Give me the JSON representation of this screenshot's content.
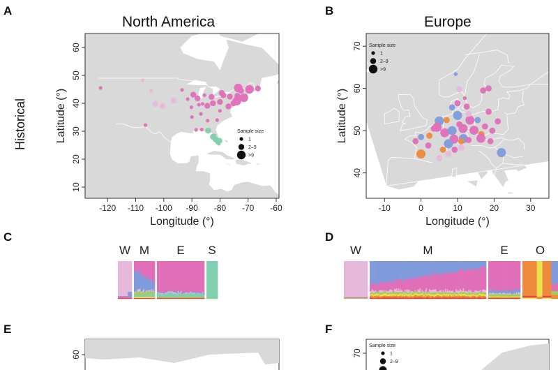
{
  "panels": {
    "A": "A",
    "B": "B",
    "C": "C",
    "D": "D",
    "E": "E",
    "F": "F"
  },
  "row_label": "Historical",
  "colors": {
    "land": "#d9d9d9",
    "water": "#ffffff",
    "cluster_pink": "#e06fb8",
    "cluster_lightpink": "#e6b8dc",
    "cluster_blue": "#7f9bdc",
    "cluster_teal": "#7fcfb0",
    "cluster_orange": "#ef8a3c",
    "cluster_yellow": "#e9e24a",
    "cluster_green": "#9fcf5a",
    "cluster_red": "#e4473a",
    "cluster_purple": "#9c6ab5"
  },
  "chart_data": [
    {
      "id": "A",
      "type": "scatter",
      "title": "North America",
      "xlabel": "Longitude (°)",
      "ylabel": "Latitude (°)",
      "xlim": [
        -128,
        -59
      ],
      "ylim": [
        6,
        65
      ],
      "xticks": [
        -120,
        -110,
        -100,
        -90,
        -80,
        -70,
        -60
      ],
      "yticks": [
        10,
        20,
        30,
        40,
        50,
        60
      ],
      "legend": {
        "title": "Sample size",
        "entries": [
          "1",
          "2–9",
          ">9"
        ],
        "placement": "bottom-right"
      },
      "points": [
        {
          "x": -122.5,
          "y": 45.5,
          "s": 1,
          "c": "pink"
        },
        {
          "x": -107.5,
          "y": 48.3,
          "s": 1,
          "c": "lightpink"
        },
        {
          "x": -104.5,
          "y": 44.5,
          "s": 1,
          "c": "lightpink"
        },
        {
          "x": -103.0,
          "y": 39.8,
          "s": 2,
          "c": "lightpink"
        },
        {
          "x": -100.5,
          "y": 39.0,
          "s": 2,
          "c": "lightpink"
        },
        {
          "x": -106.5,
          "y": 32.2,
          "s": 1,
          "c": "pink"
        },
        {
          "x": -96.5,
          "y": 41.0,
          "s": 2,
          "c": "lightpink"
        },
        {
          "x": -93.5,
          "y": 44.8,
          "s": 1,
          "c": "pink"
        },
        {
          "x": -89.5,
          "y": 43.1,
          "s": 2,
          "c": "pink"
        },
        {
          "x": -91.5,
          "y": 41.5,
          "s": 1,
          "c": "pink"
        },
        {
          "x": -88.0,
          "y": 41.8,
          "s": 2,
          "c": "pink"
        },
        {
          "x": -87.5,
          "y": 39.5,
          "s": 1,
          "c": "pink"
        },
        {
          "x": -86.2,
          "y": 39.8,
          "s": 1,
          "c": "pink"
        },
        {
          "x": -84.5,
          "y": 39.1,
          "s": 2,
          "c": "pink"
        },
        {
          "x": -83.0,
          "y": 42.3,
          "s": 2,
          "c": "pink"
        },
        {
          "x": -85.5,
          "y": 42.9,
          "s": 1,
          "c": "pink"
        },
        {
          "x": -90.2,
          "y": 38.6,
          "s": 1,
          "c": "pink"
        },
        {
          "x": -90.0,
          "y": 35.1,
          "s": 1,
          "c": "pink"
        },
        {
          "x": -86.8,
          "y": 36.2,
          "s": 1,
          "c": "pink"
        },
        {
          "x": -84.4,
          "y": 33.8,
          "s": 1,
          "c": "pink"
        },
        {
          "x": -81.0,
          "y": 34.0,
          "s": 1,
          "c": "pink"
        },
        {
          "x": -88.5,
          "y": 30.5,
          "s": 1,
          "c": "pink"
        },
        {
          "x": -86.5,
          "y": 30.6,
          "s": 1,
          "c": "pink"
        },
        {
          "x": -82.5,
          "y": 40.0,
          "s": 2,
          "c": "pink"
        },
        {
          "x": -80.0,
          "y": 40.5,
          "s": 2,
          "c": "pink"
        },
        {
          "x": -78.8,
          "y": 42.9,
          "s": 2,
          "c": "pink"
        },
        {
          "x": -76.5,
          "y": 42.4,
          "s": 2,
          "c": "pink"
        },
        {
          "x": -75.2,
          "y": 40.0,
          "s": 2,
          "c": "pink"
        },
        {
          "x": -74.0,
          "y": 40.8,
          "s": 3,
          "c": "pink"
        },
        {
          "x": -77.0,
          "y": 38.9,
          "s": 2,
          "c": "pink"
        },
        {
          "x": -73.8,
          "y": 42.7,
          "s": 2,
          "c": "pink"
        },
        {
          "x": -71.5,
          "y": 42.0,
          "s": 3,
          "c": "pink"
        },
        {
          "x": -72.5,
          "y": 44.5,
          "s": 2,
          "c": "pink"
        },
        {
          "x": -69.5,
          "y": 45.0,
          "s": 3,
          "c": "pink"
        },
        {
          "x": -66.5,
          "y": 45.3,
          "s": 2,
          "c": "pink"
        },
        {
          "x": -73.5,
          "y": 45.5,
          "s": 3,
          "c": "pink"
        },
        {
          "x": -79.4,
          "y": 43.7,
          "s": 2,
          "c": "pink"
        },
        {
          "x": -80.0,
          "y": 37.3,
          "s": 1,
          "c": "pink"
        },
        {
          "x": -84.2,
          "y": 30.2,
          "s": 2,
          "c": "teal"
        },
        {
          "x": -82.5,
          "y": 28.0,
          "s": 2,
          "c": "teal"
        },
        {
          "x": -81.5,
          "y": 27.0,
          "s": 2,
          "c": "teal"
        },
        {
          "x": -81.0,
          "y": 26.0,
          "s": 1,
          "c": "teal"
        },
        {
          "x": -80.4,
          "y": 25.5,
          "s": 1,
          "c": "teal"
        },
        {
          "x": -80.2,
          "y": 26.6,
          "s": 2,
          "c": "teal"
        },
        {
          "x": -82.0,
          "y": 28.5,
          "s": 1,
          "c": "teal"
        }
      ]
    },
    {
      "id": "B",
      "type": "scatter",
      "title": "Europe",
      "xlabel": "Longitude (°)",
      "ylabel": "Latitude (°)",
      "xlim": [
        -15,
        35
      ],
      "ylim": [
        34,
        73
      ],
      "xticks": [
        -10,
        0,
        10,
        20,
        30
      ],
      "yticks": [
        40,
        50,
        60,
        70
      ],
      "legend": {
        "title": "Sample size",
        "entries": [
          "1",
          "2–9",
          ">9"
        ],
        "placement": "top-left"
      },
      "points": [
        {
          "x": 9.5,
          "y": 63.4,
          "s": 1,
          "c": "blue"
        },
        {
          "x": 17.0,
          "y": 59.5,
          "s": 2,
          "c": "pink"
        },
        {
          "x": 18.5,
          "y": 60.0,
          "s": 2,
          "c": "pink"
        },
        {
          "x": 12.0,
          "y": 57.7,
          "s": 1,
          "c": "pink"
        },
        {
          "x": 10.5,
          "y": 59.8,
          "s": 2,
          "c": "lightpink"
        },
        {
          "x": 10.0,
          "y": 56.5,
          "s": 2,
          "c": "pink"
        },
        {
          "x": 8.5,
          "y": 55.5,
          "s": 2,
          "c": "blue"
        },
        {
          "x": 12.5,
          "y": 55.7,
          "s": 2,
          "c": "pink"
        },
        {
          "x": 18.5,
          "y": 54.5,
          "s": 2,
          "c": "pink"
        },
        {
          "x": 10.0,
          "y": 53.6,
          "s": 3,
          "c": "blue"
        },
        {
          "x": 13.4,
          "y": 52.5,
          "s": 3,
          "c": "pink"
        },
        {
          "x": 7.0,
          "y": 52.5,
          "s": 2,
          "c": "orange"
        },
        {
          "x": 5.0,
          "y": 52.3,
          "s": 3,
          "c": "blue"
        },
        {
          "x": 4.4,
          "y": 50.8,
          "s": 3,
          "c": "pink"
        },
        {
          "x": 2.3,
          "y": 48.8,
          "s": 2,
          "c": "orange"
        },
        {
          "x": 0.0,
          "y": 48.5,
          "s": 2,
          "c": "blue"
        },
        {
          "x": -1.5,
          "y": 47.5,
          "s": 2,
          "c": "pink"
        },
        {
          "x": 6.5,
          "y": 49.5,
          "s": 3,
          "c": "pink"
        },
        {
          "x": 8.5,
          "y": 50.0,
          "s": 3,
          "c": "blue"
        },
        {
          "x": 11.5,
          "y": 50.5,
          "s": 3,
          "c": "pink"
        },
        {
          "x": 14.5,
          "y": 50.1,
          "s": 3,
          "c": "pink"
        },
        {
          "x": 16.5,
          "y": 49.2,
          "s": 2,
          "c": "orange"
        },
        {
          "x": 17.5,
          "y": 51.0,
          "s": 2,
          "c": "pink"
        },
        {
          "x": 19.5,
          "y": 50.0,
          "s": 2,
          "c": "pink"
        },
        {
          "x": 21.0,
          "y": 52.2,
          "s": 2,
          "c": "pink"
        },
        {
          "x": 15.5,
          "y": 52.5,
          "s": 2,
          "c": "blue"
        },
        {
          "x": 9.0,
          "y": 48.0,
          "s": 3,
          "c": "pink"
        },
        {
          "x": 11.6,
          "y": 48.1,
          "s": 3,
          "c": "blue"
        },
        {
          "x": 13.0,
          "y": 47.8,
          "s": 2,
          "c": "pink"
        },
        {
          "x": 16.4,
          "y": 48.2,
          "s": 3,
          "c": "pink"
        },
        {
          "x": 19.0,
          "y": 47.5,
          "s": 2,
          "c": "pink"
        },
        {
          "x": 7.5,
          "y": 46.9,
          "s": 3,
          "c": "blue"
        },
        {
          "x": 6.0,
          "y": 45.5,
          "s": 2,
          "c": "orange"
        },
        {
          "x": 9.2,
          "y": 45.5,
          "s": 2,
          "c": "pink"
        },
        {
          "x": 11.0,
          "y": 46.0,
          "s": 2,
          "c": "lightpink"
        },
        {
          "x": 7.5,
          "y": 44.5,
          "s": 2,
          "c": "lightpink"
        },
        {
          "x": 5.0,
          "y": 43.5,
          "s": 2,
          "c": "lightpink"
        },
        {
          "x": 0.0,
          "y": 44.5,
          "s": 3,
          "c": "orange"
        },
        {
          "x": 2.0,
          "y": 46.5,
          "s": 2,
          "c": "pink"
        },
        {
          "x": 22.0,
          "y": 44.8,
          "s": 3,
          "c": "blue"
        },
        {
          "x": 10.5,
          "y": 51.5,
          "s": 2,
          "c": "pink"
        },
        {
          "x": 13.0,
          "y": 54.0,
          "s": 2,
          "c": "lightpink"
        },
        {
          "x": 3.5,
          "y": 50.5,
          "s": 2,
          "c": "pink"
        },
        {
          "x": 11.0,
          "y": 47.5,
          "s": 2,
          "c": "orange"
        }
      ]
    },
    {
      "id": "C",
      "type": "bar",
      "stacked": true,
      "groups": [
        "W",
        "M",
        "E",
        "S"
      ],
      "group_shares": [
        0.17,
        0.25,
        0.52,
        0.1
      ],
      "components": [
        "lightpink",
        "blue",
        "pink",
        "teal",
        "green",
        "yellow",
        "red"
      ]
    },
    {
      "id": "D",
      "type": "bar",
      "stacked": true,
      "groups": [
        "W",
        "M",
        "E",
        "O"
      ],
      "group_shares": [
        0.12,
        0.57,
        0.15,
        0.16
      ],
      "components": [
        "lightpink",
        "blue",
        "pink",
        "orange",
        "yellow",
        "green",
        "red"
      ]
    },
    {
      "id": "E",
      "type": "scatter",
      "yticks": [
        60
      ]
    },
    {
      "id": "F",
      "type": "scatter",
      "yticks": [
        70
      ],
      "legend": {
        "title": "Sample size",
        "entries": [
          "1",
          "2–9"
        ],
        "placement": "top-left"
      }
    }
  ]
}
